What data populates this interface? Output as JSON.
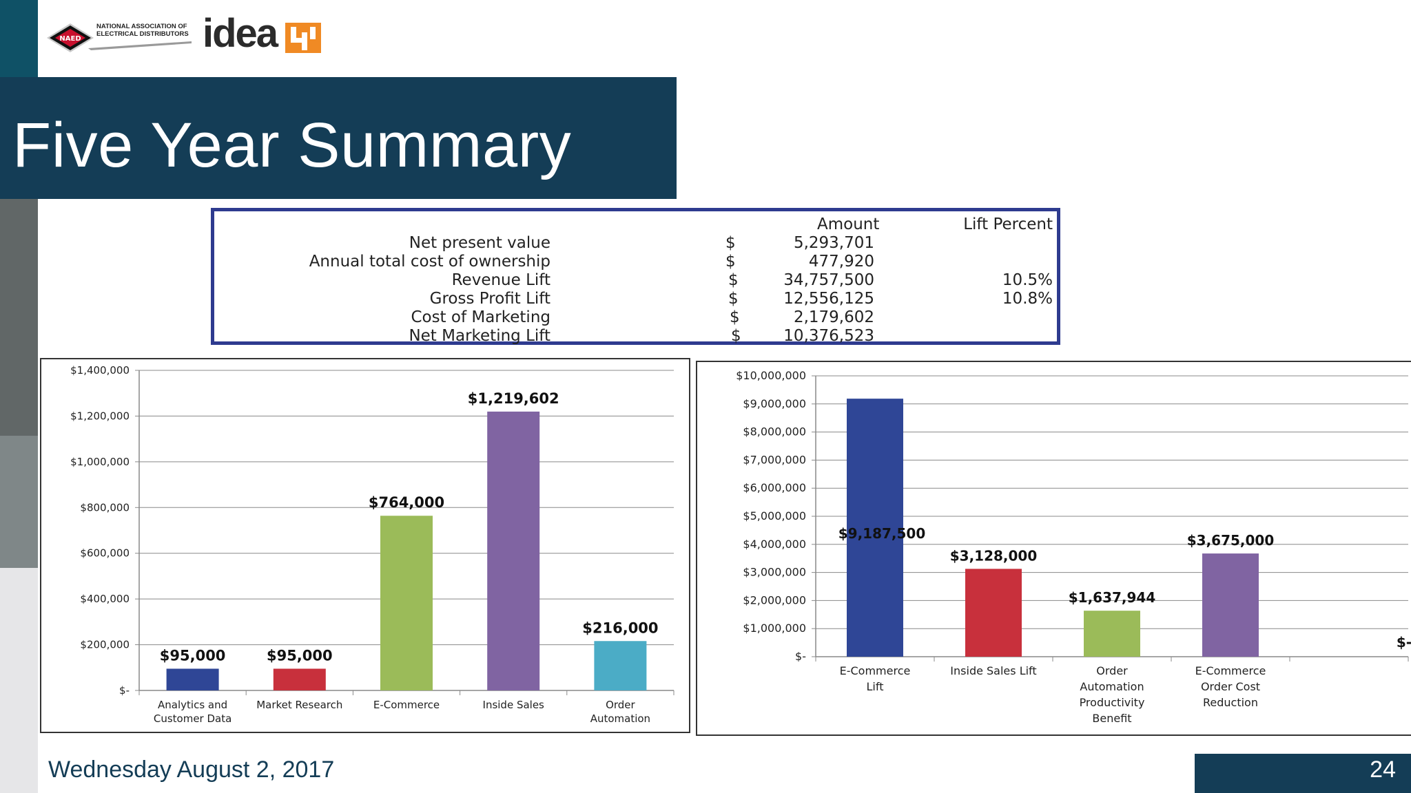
{
  "slide": {
    "title": "Five Year Summary",
    "date": "Wednesday August 2, 2017",
    "page_number": "24"
  },
  "logos": {
    "naed_badge": "NAED",
    "naed_line1": "NATIONAL ASSOCIATION OF",
    "naed_line2": "ELECTRICAL DISTRIBUTORS",
    "idea_word": "idea",
    "idea_mark_icon": "idea-brand-mark-icon",
    "colors": {
      "naed_red": "#c8102e",
      "idea_orange": "#f08a24"
    }
  },
  "summary_table": {
    "headers": {
      "amount": "Amount",
      "lift_percent": "Lift Percent"
    },
    "rows": [
      {
        "label": "Net present value",
        "currency": "$",
        "amount": "5,293,701",
        "lift": ""
      },
      {
        "label": "Annual total cost of ownership",
        "currency": "$",
        "amount": "477,920",
        "lift": ""
      },
      {
        "label": "Revenue Lift",
        "currency": "$",
        "amount": "34,757,500",
        "lift": "10.5%"
      },
      {
        "label": "Gross Profit Lift",
        "currency": "$",
        "amount": "12,556,125",
        "lift": "10.8%"
      },
      {
        "label": "Cost of Marketing",
        "currency": "$",
        "amount": "2,179,602",
        "lift": ""
      },
      {
        "label": "Net Marketing Lift",
        "currency": "$",
        "amount": "10,376,523",
        "lift": ""
      }
    ],
    "border_color": "#2e3b8f"
  },
  "chart_data": [
    {
      "type": "bar",
      "categories": [
        [
          "Analytics and",
          "Customer Data"
        ],
        [
          "Market Research"
        ],
        [
          "E-Commerce"
        ],
        [
          "Inside Sales"
        ],
        [
          "Order",
          "Automation"
        ]
      ],
      "values": [
        95000,
        95000,
        764000,
        1219602,
        216000
      ],
      "data_labels": [
        "$95,000",
        "$95,000",
        "$764,000",
        "$1,219,602",
        "$216,000"
      ],
      "colors": [
        "#2f4696",
        "#c8303c",
        "#9bbb59",
        "#8064a2",
        "#4bacc6"
      ],
      "ylim": [
        0,
        1400000
      ],
      "yticks": [
        0,
        200000,
        400000,
        600000,
        800000,
        1000000,
        1200000,
        1400000
      ],
      "ytick_labels": [
        "$-",
        "$200,000",
        "$400,000",
        "$600,000",
        "$800,000",
        "$1,000,000",
        "$1,200,000",
        "$1,400,000"
      ],
      "grid": true,
      "title": "",
      "xlabel": "",
      "ylabel": ""
    },
    {
      "type": "bar",
      "categories": [
        [
          "E-Commerce",
          "Lift"
        ],
        [
          "Inside Sales Lift"
        ],
        [
          "Order",
          "Automation",
          "Productivity",
          "Benefit"
        ],
        [
          "E-Commerce",
          "Order Cost",
          "Reduction"
        ],
        [
          ""
        ]
      ],
      "values": [
        9187500,
        3128000,
        1637944,
        3675000,
        0
      ],
      "data_labels": [
        "$9,187,500",
        "$3,128,000",
        "$1,637,944",
        "$3,675,000",
        "$-"
      ],
      "colors": [
        "#2f4696",
        "#c8303c",
        "#9bbb59",
        "#8064a2",
        "#4bacc6"
      ],
      "ylim": [
        0,
        10000000
      ],
      "yticks": [
        0,
        1000000,
        2000000,
        3000000,
        4000000,
        5000000,
        6000000,
        7000000,
        8000000,
        9000000,
        10000000
      ],
      "ytick_labels": [
        "$-",
        "$1,000,000",
        "$2,000,000",
        "$3,000,000",
        "$4,000,000",
        "$5,000,000",
        "$6,000,000",
        "$7,000,000",
        "$8,000,000",
        "$9,000,000",
        "$10,000,000"
      ],
      "grid": true,
      "title": "",
      "xlabel": "",
      "ylabel": ""
    }
  ],
  "theme": {
    "navy": "#143d56",
    "teal": "#0f5166",
    "gray_dark": "#616767",
    "gray_mid": "#7f8788",
    "gray_light": "#e6e6e8"
  }
}
